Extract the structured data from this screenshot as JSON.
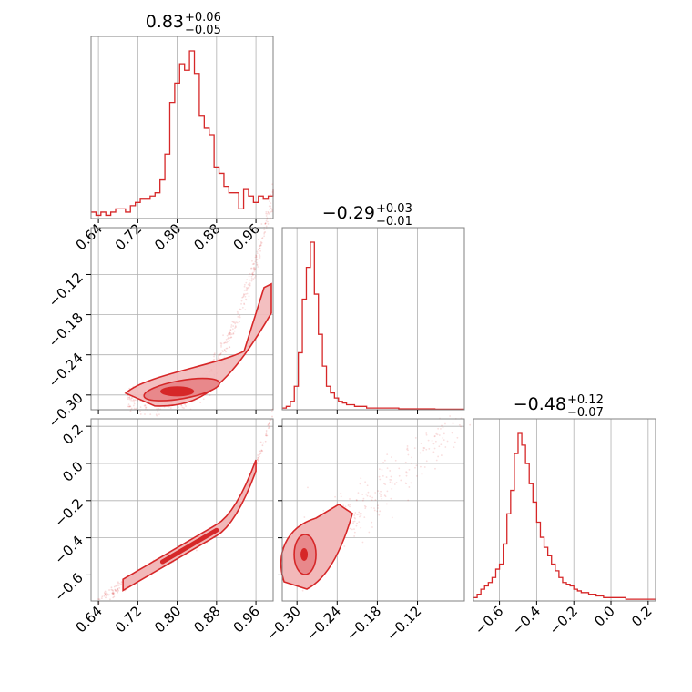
{
  "colors": {
    "accent": "#d62728",
    "fill": "#f2b8b9",
    "fill_dark": "#e8888b",
    "grid": "#b0b0b0",
    "frame": "#808080"
  },
  "chart_data": [
    {
      "type": "histogram",
      "panel": "marginal-param-1",
      "title": {
        "median": "0.83",
        "upper": "+0.06",
        "lower": "−0.05"
      },
      "xlim": [
        0.625,
        0.995
      ],
      "x_ticks": [
        0.64,
        0.72,
        0.8,
        0.88,
        0.96
      ],
      "x_tick_labels": [
        "0.64",
        "0.72",
        "0.80",
        "0.88",
        "0.96"
      ],
      "grid": true,
      "bins_x": [
        0.625,
        0.635,
        0.645,
        0.655,
        0.665,
        0.675,
        0.685,
        0.695,
        0.705,
        0.715,
        0.725,
        0.735,
        0.745,
        0.755,
        0.765,
        0.775,
        0.785,
        0.795,
        0.805,
        0.815,
        0.825,
        0.835,
        0.845,
        0.855,
        0.865,
        0.875,
        0.885,
        0.895,
        0.905,
        0.915,
        0.925,
        0.935,
        0.945,
        0.955,
        0.965,
        0.975,
        0.985,
        0.995
      ],
      "counts": [
        2,
        1,
        2,
        1,
        2,
        3,
        3,
        2,
        4,
        5,
        6,
        6,
        7,
        8,
        12,
        20,
        36,
        42,
        48,
        46,
        52,
        45,
        32,
        28,
        26,
        16,
        14,
        10,
        8,
        8,
        3,
        9,
        7,
        5,
        7,
        6,
        7,
        9
      ]
    },
    {
      "type": "histogram",
      "panel": "marginal-param-2",
      "title": {
        "median": "−0.29",
        "upper": "+0.03",
        "lower": "−0.01"
      },
      "xlim": [
        -0.322,
        -0.05
      ],
      "x_ticks": [
        -0.3,
        -0.24,
        -0.18,
        -0.12
      ],
      "grid": true,
      "bins_x": [
        -0.322,
        -0.316,
        -0.31,
        -0.304,
        -0.298,
        -0.292,
        -0.286,
        -0.28,
        -0.274,
        -0.268,
        -0.262,
        -0.256,
        -0.25,
        -0.244,
        -0.238,
        -0.232,
        -0.226,
        -0.22,
        -0.214,
        -0.208,
        -0.202,
        -0.196,
        -0.19,
        -0.184,
        -0.178,
        -0.172,
        -0.166,
        -0.16,
        -0.154,
        -0.148,
        -0.142,
        -0.136,
        -0.13,
        -0.124,
        -0.118,
        -0.112,
        -0.106,
        -0.1,
        -0.094,
        -0.088,
        -0.082,
        -0.076,
        -0.07,
        -0.064,
        -0.058,
        -0.05
      ],
      "counts": [
        1,
        2,
        5,
        14,
        34,
        66,
        85,
        100,
        69,
        45,
        26,
        14,
        10,
        7,
        5,
        4,
        3,
        3,
        2,
        2,
        2,
        1,
        1,
        1,
        1,
        1,
        1,
        1,
        1,
        0.5,
        0.5,
        0.5,
        0.5,
        0.5,
        0.5,
        0.5,
        0.5,
        0.5,
        0.3,
        0.3,
        0.3,
        0.3,
        0.3,
        0.3,
        0.3
      ]
    },
    {
      "type": "histogram",
      "panel": "marginal-param-3",
      "title": {
        "median": "−0.48",
        "upper": "+0.12",
        "lower": "−0.07"
      },
      "xlim": [
        -0.74,
        0.24
      ],
      "x_ticks": [
        -0.6,
        -0.4,
        -0.2,
        0.0,
        0.2
      ],
      "x_tick_labels": [
        "−0.6",
        "−0.4",
        "−0.2",
        "0.0",
        "0.2"
      ],
      "grid": true,
      "bins_x": [
        -0.74,
        -0.72,
        -0.7,
        -0.68,
        -0.66,
        -0.64,
        -0.62,
        -0.6,
        -0.58,
        -0.56,
        -0.54,
        -0.52,
        -0.5,
        -0.48,
        -0.46,
        -0.44,
        -0.42,
        -0.4,
        -0.38,
        -0.36,
        -0.34,
        -0.32,
        -0.3,
        -0.28,
        -0.26,
        -0.24,
        -0.22,
        -0.2,
        -0.18,
        -0.16,
        -0.14,
        -0.12,
        -0.1,
        -0.08,
        -0.06,
        -0.04,
        -0.02,
        0.0,
        0.02,
        0.04,
        0.06,
        0.08,
        0.1,
        0.12,
        0.14,
        0.16,
        0.18,
        0.2,
        0.22,
        0.24
      ],
      "counts": [
        2,
        4,
        7,
        9,
        11,
        14,
        19,
        22,
        34,
        52,
        66,
        88,
        100,
        93,
        82,
        70,
        59,
        47,
        38,
        32,
        27,
        22,
        18,
        14,
        11,
        10,
        9,
        7,
        6,
        5,
        5,
        4,
        4,
        3,
        3,
        2,
        2,
        2,
        2,
        2,
        2,
        1,
        1,
        1,
        1,
        1,
        1,
        1,
        1
      ]
    },
    {
      "type": "scatter-density",
      "panel": "joint-param-1-param-2",
      "xlim": [
        0.625,
        0.995
      ],
      "ylim": [
        -0.322,
        -0.05
      ],
      "y_ticks": [
        -0.3,
        -0.24,
        -0.18,
        -0.12
      ],
      "y_tick_labels": [
        "−0.30",
        "−0.24",
        "−0.18",
        "−0.12"
      ],
      "grid": true,
      "trend": {
        "center_x": 0.8,
        "center_y": -0.3
      }
    },
    {
      "type": "scatter-density",
      "panel": "joint-param-1-param-3",
      "xlim": [
        0.625,
        0.995
      ],
      "ylim": [
        -0.74,
        0.24
      ],
      "y_ticks": [
        -0.6,
        -0.4,
        -0.2,
        0.0,
        0.2
      ],
      "y_tick_labels": [
        "−0.6",
        "−0.4",
        "−0.2",
        "0.0",
        "0.2"
      ],
      "grid": true,
      "trend": {
        "center_x": 0.81,
        "center_y": -0.49
      }
    },
    {
      "type": "scatter-density",
      "panel": "joint-param-2-param-3",
      "xlim": [
        -0.322,
        -0.05
      ],
      "ylim": [
        -0.74,
        0.24
      ],
      "x_ticks": [
        -0.3,
        -0.24,
        -0.18,
        -0.12
      ],
      "x_tick_labels": [
        "−0.30",
        "−0.24",
        "−0.18",
        "−0.12"
      ],
      "grid": true,
      "trend": {
        "center_x": -0.292,
        "center_y": -0.49
      }
    }
  ]
}
